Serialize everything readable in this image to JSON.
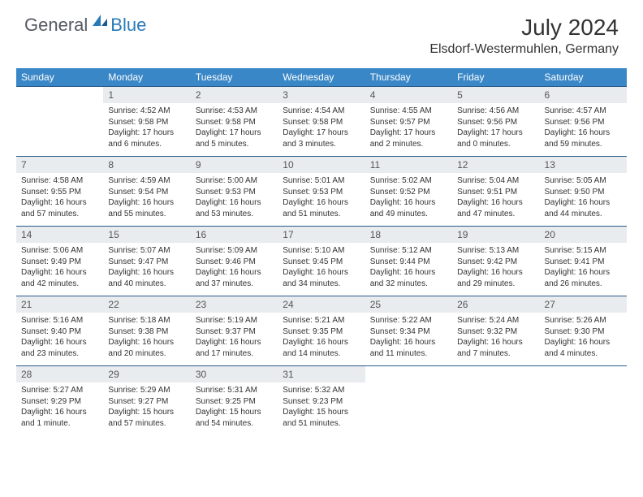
{
  "brand": {
    "general": "General",
    "blue": "Blue"
  },
  "title": "July 2024",
  "location": "Elsdorf-Westermuhlen, Germany",
  "colors": {
    "header_bg": "#3a87c7",
    "header_text": "#ffffff",
    "daynum_bg": "#e9ecef",
    "row_border": "#2a5a8a",
    "brand_blue": "#2a7ab8",
    "brand_gray": "#555960",
    "text": "#333333"
  },
  "dow": [
    "Sunday",
    "Monday",
    "Tuesday",
    "Wednesday",
    "Thursday",
    "Friday",
    "Saturday"
  ],
  "weeks": [
    [
      {
        "n": "",
        "sunrise": "",
        "sunset": "",
        "daylight": ""
      },
      {
        "n": "1",
        "sunrise": "Sunrise: 4:52 AM",
        "sunset": "Sunset: 9:58 PM",
        "daylight": "Daylight: 17 hours and 6 minutes."
      },
      {
        "n": "2",
        "sunrise": "Sunrise: 4:53 AM",
        "sunset": "Sunset: 9:58 PM",
        "daylight": "Daylight: 17 hours and 5 minutes."
      },
      {
        "n": "3",
        "sunrise": "Sunrise: 4:54 AM",
        "sunset": "Sunset: 9:58 PM",
        "daylight": "Daylight: 17 hours and 3 minutes."
      },
      {
        "n": "4",
        "sunrise": "Sunrise: 4:55 AM",
        "sunset": "Sunset: 9:57 PM",
        "daylight": "Daylight: 17 hours and 2 minutes."
      },
      {
        "n": "5",
        "sunrise": "Sunrise: 4:56 AM",
        "sunset": "Sunset: 9:56 PM",
        "daylight": "Daylight: 17 hours and 0 minutes."
      },
      {
        "n": "6",
        "sunrise": "Sunrise: 4:57 AM",
        "sunset": "Sunset: 9:56 PM",
        "daylight": "Daylight: 16 hours and 59 minutes."
      }
    ],
    [
      {
        "n": "7",
        "sunrise": "Sunrise: 4:58 AM",
        "sunset": "Sunset: 9:55 PM",
        "daylight": "Daylight: 16 hours and 57 minutes."
      },
      {
        "n": "8",
        "sunrise": "Sunrise: 4:59 AM",
        "sunset": "Sunset: 9:54 PM",
        "daylight": "Daylight: 16 hours and 55 minutes."
      },
      {
        "n": "9",
        "sunrise": "Sunrise: 5:00 AM",
        "sunset": "Sunset: 9:53 PM",
        "daylight": "Daylight: 16 hours and 53 minutes."
      },
      {
        "n": "10",
        "sunrise": "Sunrise: 5:01 AM",
        "sunset": "Sunset: 9:53 PM",
        "daylight": "Daylight: 16 hours and 51 minutes."
      },
      {
        "n": "11",
        "sunrise": "Sunrise: 5:02 AM",
        "sunset": "Sunset: 9:52 PM",
        "daylight": "Daylight: 16 hours and 49 minutes."
      },
      {
        "n": "12",
        "sunrise": "Sunrise: 5:04 AM",
        "sunset": "Sunset: 9:51 PM",
        "daylight": "Daylight: 16 hours and 47 minutes."
      },
      {
        "n": "13",
        "sunrise": "Sunrise: 5:05 AM",
        "sunset": "Sunset: 9:50 PM",
        "daylight": "Daylight: 16 hours and 44 minutes."
      }
    ],
    [
      {
        "n": "14",
        "sunrise": "Sunrise: 5:06 AM",
        "sunset": "Sunset: 9:49 PM",
        "daylight": "Daylight: 16 hours and 42 minutes."
      },
      {
        "n": "15",
        "sunrise": "Sunrise: 5:07 AM",
        "sunset": "Sunset: 9:47 PM",
        "daylight": "Daylight: 16 hours and 40 minutes."
      },
      {
        "n": "16",
        "sunrise": "Sunrise: 5:09 AM",
        "sunset": "Sunset: 9:46 PM",
        "daylight": "Daylight: 16 hours and 37 minutes."
      },
      {
        "n": "17",
        "sunrise": "Sunrise: 5:10 AM",
        "sunset": "Sunset: 9:45 PM",
        "daylight": "Daylight: 16 hours and 34 minutes."
      },
      {
        "n": "18",
        "sunrise": "Sunrise: 5:12 AM",
        "sunset": "Sunset: 9:44 PM",
        "daylight": "Daylight: 16 hours and 32 minutes."
      },
      {
        "n": "19",
        "sunrise": "Sunrise: 5:13 AM",
        "sunset": "Sunset: 9:42 PM",
        "daylight": "Daylight: 16 hours and 29 minutes."
      },
      {
        "n": "20",
        "sunrise": "Sunrise: 5:15 AM",
        "sunset": "Sunset: 9:41 PM",
        "daylight": "Daylight: 16 hours and 26 minutes."
      }
    ],
    [
      {
        "n": "21",
        "sunrise": "Sunrise: 5:16 AM",
        "sunset": "Sunset: 9:40 PM",
        "daylight": "Daylight: 16 hours and 23 minutes."
      },
      {
        "n": "22",
        "sunrise": "Sunrise: 5:18 AM",
        "sunset": "Sunset: 9:38 PM",
        "daylight": "Daylight: 16 hours and 20 minutes."
      },
      {
        "n": "23",
        "sunrise": "Sunrise: 5:19 AM",
        "sunset": "Sunset: 9:37 PM",
        "daylight": "Daylight: 16 hours and 17 minutes."
      },
      {
        "n": "24",
        "sunrise": "Sunrise: 5:21 AM",
        "sunset": "Sunset: 9:35 PM",
        "daylight": "Daylight: 16 hours and 14 minutes."
      },
      {
        "n": "25",
        "sunrise": "Sunrise: 5:22 AM",
        "sunset": "Sunset: 9:34 PM",
        "daylight": "Daylight: 16 hours and 11 minutes."
      },
      {
        "n": "26",
        "sunrise": "Sunrise: 5:24 AM",
        "sunset": "Sunset: 9:32 PM",
        "daylight": "Daylight: 16 hours and 7 minutes."
      },
      {
        "n": "27",
        "sunrise": "Sunrise: 5:26 AM",
        "sunset": "Sunset: 9:30 PM",
        "daylight": "Daylight: 16 hours and 4 minutes."
      }
    ],
    [
      {
        "n": "28",
        "sunrise": "Sunrise: 5:27 AM",
        "sunset": "Sunset: 9:29 PM",
        "daylight": "Daylight: 16 hours and 1 minute."
      },
      {
        "n": "29",
        "sunrise": "Sunrise: 5:29 AM",
        "sunset": "Sunset: 9:27 PM",
        "daylight": "Daylight: 15 hours and 57 minutes."
      },
      {
        "n": "30",
        "sunrise": "Sunrise: 5:31 AM",
        "sunset": "Sunset: 9:25 PM",
        "daylight": "Daylight: 15 hours and 54 minutes."
      },
      {
        "n": "31",
        "sunrise": "Sunrise: 5:32 AM",
        "sunset": "Sunset: 9:23 PM",
        "daylight": "Daylight: 15 hours and 51 minutes."
      },
      {
        "n": "",
        "sunrise": "",
        "sunset": "",
        "daylight": ""
      },
      {
        "n": "",
        "sunrise": "",
        "sunset": "",
        "daylight": ""
      },
      {
        "n": "",
        "sunrise": "",
        "sunset": "",
        "daylight": ""
      }
    ]
  ]
}
